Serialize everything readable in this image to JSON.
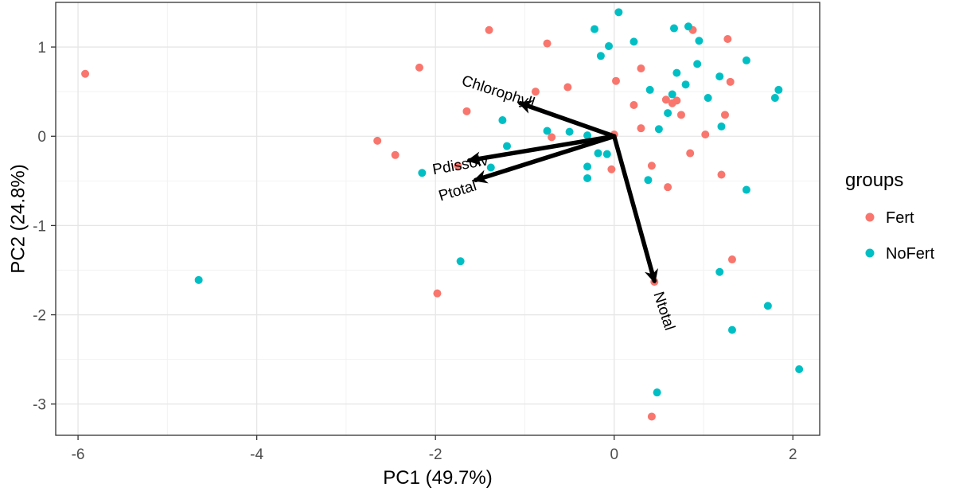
{
  "chart_data": {
    "type": "scatter",
    "title": "",
    "xlabel": "PC1 (49.7%)",
    "ylabel": "PC2 (24.8%)",
    "xlim": [
      -6.25,
      2.3
    ],
    "ylim": [
      -3.35,
      1.5
    ],
    "x_ticks": [
      -6,
      -4,
      -2,
      0,
      2
    ],
    "y_ticks": [
      -3,
      -2,
      -1,
      0,
      1
    ],
    "grid": true,
    "legend": {
      "title": "groups",
      "position": "right"
    },
    "series": [
      {
        "name": "Fert",
        "color": "#F8766D",
        "points": [
          {
            "x": -5.92,
            "y": 0.7
          },
          {
            "x": -1.4,
            "y": 1.19
          },
          {
            "x": -0.75,
            "y": 1.04
          },
          {
            "x": -2.18,
            "y": 0.77
          },
          {
            "x": -0.88,
            "y": 0.5
          },
          {
            "x": -0.52,
            "y": 0.55
          },
          {
            "x": -1.65,
            "y": 0.28
          },
          {
            "x": -0.7,
            "y": -0.01
          },
          {
            "x": -2.65,
            "y": -0.05
          },
          {
            "x": -2.45,
            "y": -0.21
          },
          {
            "x": -1.75,
            "y": -0.33
          },
          {
            "x": -1.98,
            "y": -1.76
          },
          {
            "x": -0.03,
            "y": -0.37
          },
          {
            "x": 0.0,
            "y": 0.02
          },
          {
            "x": 0.02,
            "y": 0.62
          },
          {
            "x": 0.3,
            "y": 0.76
          },
          {
            "x": 0.22,
            "y": 0.35
          },
          {
            "x": 0.3,
            "y": 0.09
          },
          {
            "x": 0.42,
            "y": -0.33
          },
          {
            "x": 0.58,
            "y": 0.41
          },
          {
            "x": 0.6,
            "y": -0.57
          },
          {
            "x": 0.7,
            "y": 0.4
          },
          {
            "x": 0.75,
            "y": 0.24
          },
          {
            "x": 0.85,
            "y": -0.19
          },
          {
            "x": 0.88,
            "y": 1.19
          },
          {
            "x": 1.02,
            "y": 0.02
          },
          {
            "x": 1.2,
            "y": -0.43
          },
          {
            "x": 1.24,
            "y": 0.24
          },
          {
            "x": 1.27,
            "y": 1.09
          },
          {
            "x": 1.3,
            "y": 0.61
          },
          {
            "x": 1.32,
            "y": -1.38
          },
          {
            "x": 0.45,
            "y": -1.63
          },
          {
            "x": 0.42,
            "y": -3.14
          },
          {
            "x": 0.65,
            "y": 0.37
          }
        ]
      },
      {
        "name": "NoFert",
        "color": "#00BFC4",
        "points": [
          {
            "x": -4.65,
            "y": -1.61
          },
          {
            "x": -2.15,
            "y": -0.41
          },
          {
            "x": -1.72,
            "y": -1.4
          },
          {
            "x": -1.38,
            "y": -0.35
          },
          {
            "x": -1.25,
            "y": 0.18
          },
          {
            "x": -1.2,
            "y": -0.11
          },
          {
            "x": -0.75,
            "y": 0.06
          },
          {
            "x": -0.5,
            "y": 0.05
          },
          {
            "x": -0.3,
            "y": 0.01
          },
          {
            "x": -0.3,
            "y": -0.34
          },
          {
            "x": -0.3,
            "y": -0.47
          },
          {
            "x": -0.18,
            "y": -0.19
          },
          {
            "x": -0.08,
            "y": -0.2
          },
          {
            "x": -0.22,
            "y": 1.2
          },
          {
            "x": -0.15,
            "y": 0.9
          },
          {
            "x": -0.06,
            "y": 1.01
          },
          {
            "x": 0.05,
            "y": 1.39
          },
          {
            "x": 0.22,
            "y": 1.06
          },
          {
            "x": 0.38,
            "y": -0.49
          },
          {
            "x": 0.4,
            "y": 0.52
          },
          {
            "x": 0.48,
            "y": -2.87
          },
          {
            "x": 0.5,
            "y": 0.08
          },
          {
            "x": 0.6,
            "y": 0.26
          },
          {
            "x": 0.65,
            "y": 0.47
          },
          {
            "x": 0.67,
            "y": 1.21
          },
          {
            "x": 0.7,
            "y": 0.71
          },
          {
            "x": 0.8,
            "y": 0.58
          },
          {
            "x": 0.83,
            "y": 1.23
          },
          {
            "x": 0.93,
            "y": 0.81
          },
          {
            "x": 0.95,
            "y": 1.07
          },
          {
            "x": 1.05,
            "y": 0.43
          },
          {
            "x": 1.18,
            "y": 0.67
          },
          {
            "x": 1.2,
            "y": 0.11
          },
          {
            "x": 1.18,
            "y": -1.52
          },
          {
            "x": 1.32,
            "y": -2.17
          },
          {
            "x": 1.48,
            "y": 0.85
          },
          {
            "x": 1.48,
            "y": -0.6
          },
          {
            "x": 1.72,
            "y": -1.9
          },
          {
            "x": 1.8,
            "y": 0.43
          },
          {
            "x": 1.84,
            "y": 0.52
          },
          {
            "x": 2.07,
            "y": -2.61
          }
        ]
      }
    ],
    "loadings": [
      {
        "name": "Chlorophyll",
        "x": -1.05,
        "y": 0.37,
        "label_x": -1.3,
        "label_y": 0.49,
        "angle": 18
      },
      {
        "name": "Pdissolv",
        "x": -1.62,
        "y": -0.27,
        "label_x": -1.72,
        "label_y": -0.33,
        "angle": -10
      },
      {
        "name": "Ptotal",
        "x": -1.55,
        "y": -0.49,
        "label_x": -1.75,
        "label_y": -0.62,
        "angle": -17
      },
      {
        "name": "Ntotal",
        "x": 0.45,
        "y": -1.62,
        "label_x": 0.55,
        "label_y": -1.96,
        "angle": 72
      }
    ]
  }
}
